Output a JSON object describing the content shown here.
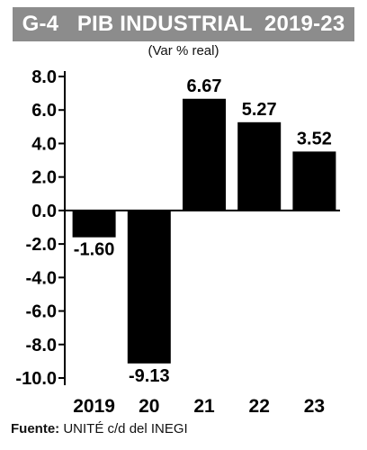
{
  "header": {
    "code": "G-4",
    "title": "PIB INDUSTRIAL  2019-23",
    "subtitle": "(Var % real)"
  },
  "source": {
    "label": "Fuente:",
    "text": "UNITÉ c/d del INEGI"
  },
  "colors": {
    "title_bg": "#8c8c8c",
    "bar": "#000000"
  },
  "chart_data": {
    "type": "bar",
    "title": "PIB INDUSTRIAL  2019-23",
    "subtitle": "(Var % real)",
    "categories": [
      "2019",
      "20",
      "21",
      "22",
      "23"
    ],
    "values": [
      -1.6,
      -9.13,
      6.67,
      5.27,
      3.52
    ],
    "value_labels": [
      "-1.60",
      "-9.13",
      "6.67",
      "5.27",
      "3.52"
    ],
    "yticks": [
      "8.0",
      "6.0",
      "4.0",
      "2.0",
      "0.0",
      "-2.0",
      "-4.0",
      "-6.0",
      "-8.0",
      "-10.0"
    ],
    "ylim": [
      -10,
      8
    ],
    "xlabel": "",
    "ylabel": "",
    "grid": false,
    "legend": "none"
  }
}
